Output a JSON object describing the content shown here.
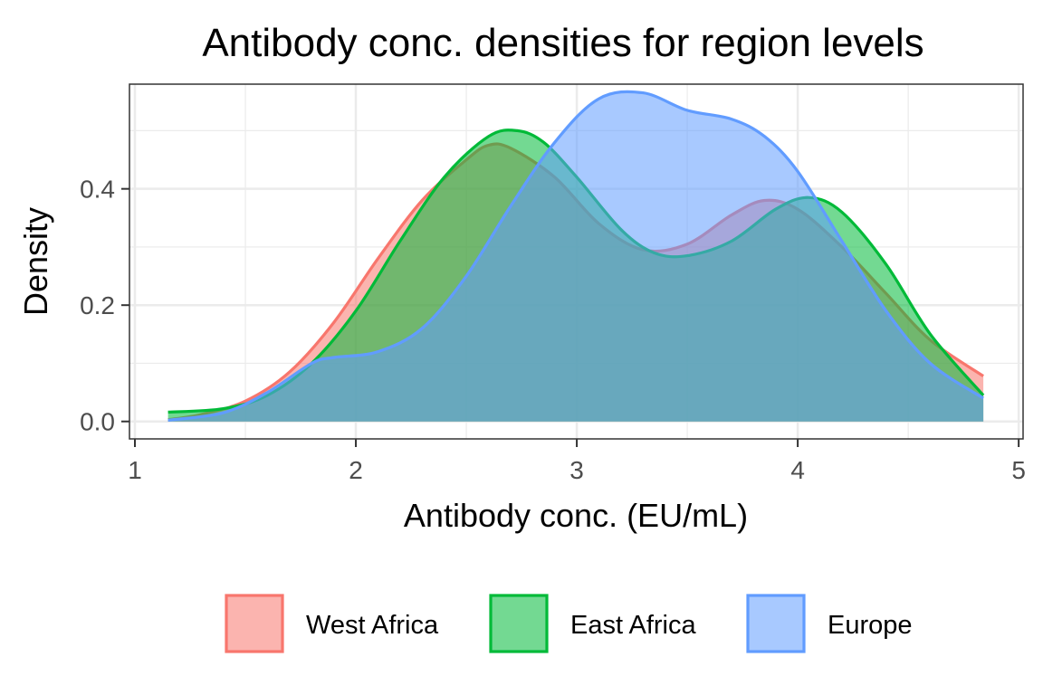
{
  "chart_data": {
    "type": "area",
    "title": "Antibody conc. densities for region levels",
    "xlabel": "Antibody conc. (EU/mL)",
    "ylabel": "Density",
    "xlim": [
      1,
      5
    ],
    "ylim": [
      -0.03,
      0.58
    ],
    "x_ticks": [
      1,
      2,
      3,
      4,
      5
    ],
    "y_ticks": [
      0.0,
      0.2,
      0.4
    ],
    "x_tick_labels": [
      "1",
      "2",
      "3",
      "4",
      "5"
    ],
    "y_tick_labels": [
      "0.0",
      "0.2",
      "0.4"
    ],
    "grid": true,
    "legend_position": "bottom",
    "series": [
      {
        "name": "West Africa",
        "color": "#F8766D",
        "x": [
          1.15,
          1.3,
          1.5,
          1.7,
          1.9,
          2.1,
          2.3,
          2.5,
          2.6,
          2.7,
          2.9,
          3.1,
          3.3,
          3.5,
          3.7,
          3.85,
          4.0,
          4.2,
          4.4,
          4.6,
          4.84
        ],
        "y": [
          0.003,
          0.012,
          0.035,
          0.085,
          0.17,
          0.28,
          0.38,
          0.45,
          0.475,
          0.47,
          0.42,
          0.34,
          0.295,
          0.305,
          0.355,
          0.38,
          0.365,
          0.3,
          0.22,
          0.14,
          0.078
        ]
      },
      {
        "name": "East Africa",
        "color": "#00BA38",
        "x": [
          1.15,
          1.4,
          1.6,
          1.8,
          2.0,
          2.2,
          2.4,
          2.6,
          2.73,
          2.85,
          3.0,
          3.2,
          3.35,
          3.5,
          3.7,
          3.9,
          4.05,
          4.2,
          4.4,
          4.6,
          4.84
        ],
        "y": [
          0.016,
          0.022,
          0.045,
          0.1,
          0.19,
          0.31,
          0.42,
          0.49,
          0.5,
          0.48,
          0.42,
          0.33,
          0.29,
          0.285,
          0.31,
          0.365,
          0.385,
          0.36,
          0.27,
          0.15,
          0.045
        ]
      },
      {
        "name": "Europe",
        "color": "#619CFF",
        "x": [
          1.15,
          1.4,
          1.6,
          1.8,
          1.9,
          2.1,
          2.3,
          2.5,
          2.7,
          2.9,
          3.1,
          3.3,
          3.5,
          3.7,
          3.85,
          4.0,
          4.2,
          4.4,
          4.6,
          4.84
        ],
        "y": [
          0.002,
          0.015,
          0.05,
          0.1,
          0.11,
          0.12,
          0.16,
          0.25,
          0.37,
          0.48,
          0.555,
          0.565,
          0.535,
          0.52,
          0.49,
          0.43,
          0.31,
          0.19,
          0.1,
          0.04
        ]
      }
    ]
  }
}
